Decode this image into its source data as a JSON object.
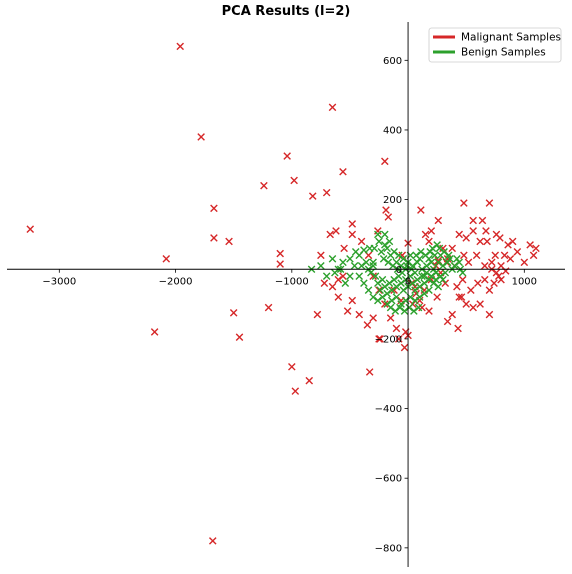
{
  "chart_data": {
    "type": "scatter",
    "title": "PCA Results (l=2)",
    "xlabel": "",
    "ylabel": "",
    "xlim": [
      -3450,
      1350
    ],
    "ylim": [
      -855,
      710
    ],
    "xticks": [
      -3000,
      -2000,
      -1000,
      0,
      1000
    ],
    "yticks": [
      -800,
      -600,
      -400,
      -200,
      0,
      200,
      400,
      600
    ],
    "axes": "centered-spines",
    "grid": false,
    "legend_position": "top-right",
    "legend": [
      {
        "label": "Malignant Samples",
        "color": "#d62728"
      },
      {
        "label": "Benign Samples",
        "color": "#2ca02c"
      }
    ],
    "series": [
      {
        "name": "Malignant Samples",
        "color": "#d62728",
        "marker": "x",
        "points": [
          [
            -3250,
            115
          ],
          [
            -1960,
            640
          ],
          [
            -1780,
            380
          ],
          [
            -1670,
            175
          ],
          [
            -1670,
            90
          ],
          [
            -1540,
            80
          ],
          [
            -2080,
            30
          ],
          [
            -2180,
            -180
          ],
          [
            -1500,
            -125
          ],
          [
            -1450,
            -195
          ],
          [
            -1200,
            -110
          ],
          [
            -1240,
            240
          ],
          [
            -1040,
            325
          ],
          [
            -980,
            255
          ],
          [
            -1100,
            45
          ],
          [
            -1100,
            15
          ],
          [
            -1000,
            -280
          ],
          [
            -970,
            -350
          ],
          [
            -850,
            -320
          ],
          [
            -820,
            210
          ],
          [
            -700,
            220
          ],
          [
            -650,
            465
          ],
          [
            -560,
            280
          ],
          [
            -780,
            -130
          ],
          [
            -720,
            -40
          ],
          [
            -600,
            -30
          ],
          [
            -200,
            310
          ],
          [
            -190,
            170
          ],
          [
            -170,
            150
          ],
          [
            -330,
            -295
          ],
          [
            -1680,
            -780
          ],
          [
            -750,
            40
          ],
          [
            -670,
            100
          ],
          [
            -620,
            110
          ],
          [
            -480,
            130
          ],
          [
            -480,
            100
          ],
          [
            -400,
            80
          ],
          [
            -550,
            60
          ],
          [
            -260,
            110
          ],
          [
            -340,
            40
          ],
          [
            -300,
            -20
          ],
          [
            -250,
            -60
          ],
          [
            -200,
            -100
          ],
          [
            -150,
            -140
          ],
          [
            -100,
            -170
          ],
          [
            -80,
            -200
          ],
          [
            -300,
            -140
          ],
          [
            -350,
            -160
          ],
          [
            -420,
            -130
          ],
          [
            -480,
            -90
          ],
          [
            -520,
            -120
          ],
          [
            -600,
            -80
          ],
          [
            -650,
            -50
          ],
          [
            -560,
            -20
          ],
          [
            -250,
            -200
          ],
          [
            -120,
            -60
          ],
          [
            -60,
            -90
          ],
          [
            -20,
            -180
          ],
          [
            -30,
            -225
          ],
          [
            0,
            75
          ],
          [
            -50,
            40
          ],
          [
            110,
            170
          ],
          [
            150,
            100
          ],
          [
            180,
            80
          ],
          [
            200,
            110
          ],
          [
            260,
            140
          ],
          [
            300,
            60
          ],
          [
            260,
            25
          ],
          [
            340,
            30
          ],
          [
            400,
            10
          ],
          [
            420,
            -50
          ],
          [
            440,
            -80
          ],
          [
            380,
            -130
          ],
          [
            320,
            -40
          ],
          [
            200,
            -30
          ],
          [
            140,
            -60
          ],
          [
            100,
            -90
          ],
          [
            60,
            -50
          ],
          [
            40,
            -100
          ],
          [
            120,
            -110
          ],
          [
            180,
            -120
          ],
          [
            340,
            -150
          ],
          [
            460,
            -80
          ],
          [
            500,
            -100
          ],
          [
            560,
            -110
          ],
          [
            620,
            -100
          ],
          [
            540,
            -60
          ],
          [
            600,
            -40
          ],
          [
            660,
            -30
          ],
          [
            700,
            -60
          ],
          [
            740,
            -40
          ],
          [
            780,
            -20
          ],
          [
            800,
            10
          ],
          [
            830,
            40
          ],
          [
            860,
            70
          ],
          [
            900,
            80
          ],
          [
            940,
            50
          ],
          [
            1050,
            70
          ],
          [
            1080,
            40
          ],
          [
            1100,
            60
          ],
          [
            1000,
            20
          ],
          [
            480,
            190
          ],
          [
            560,
            140
          ],
          [
            640,
            140
          ],
          [
            700,
            190
          ],
          [
            760,
            100
          ],
          [
            790,
            90
          ],
          [
            680,
            80
          ],
          [
            620,
            80
          ],
          [
            560,
            110
          ],
          [
            500,
            90
          ],
          [
            440,
            100
          ],
          [
            380,
            60
          ],
          [
            330,
            20
          ],
          [
            280,
            -10
          ],
          [
            240,
            10
          ],
          [
            660,
            10
          ],
          [
            720,
            20
          ],
          [
            750,
            40
          ],
          [
            700,
            -130
          ],
          [
            760,
            -10
          ],
          [
            840,
            -5
          ],
          [
            430,
            -170
          ],
          [
            -240,
            -200
          ],
          [
            0,
            -190
          ],
          [
            30,
            -40
          ],
          [
            70,
            -70
          ],
          [
            250,
            -80
          ],
          [
            480,
            40
          ],
          [
            590,
            40
          ],
          [
            670,
            110
          ],
          [
            720,
            0
          ],
          [
            800,
            -30
          ],
          [
            880,
            30
          ],
          [
            470,
            -30
          ],
          [
            520,
            20
          ]
        ]
      },
      {
        "name": "Benign Samples",
        "color": "#2ca02c",
        "marker": "x",
        "points": [
          [
            -830,
            0
          ],
          [
            -630,
            -10
          ],
          [
            -560,
            20
          ],
          [
            -500,
            30
          ],
          [
            -450,
            50
          ],
          [
            -380,
            55
          ],
          [
            -330,
            60
          ],
          [
            -290,
            60
          ],
          [
            -250,
            80
          ],
          [
            -200,
            100
          ],
          [
            -180,
            60
          ],
          [
            -150,
            40
          ],
          [
            -120,
            50
          ],
          [
            -100,
            20
          ],
          [
            -80,
            40
          ],
          [
            -60,
            10
          ],
          [
            -40,
            30
          ],
          [
            -20,
            0
          ],
          [
            0,
            20
          ],
          [
            20,
            40
          ],
          [
            40,
            10
          ],
          [
            60,
            -10
          ],
          [
            80,
            20
          ],
          [
            100,
            30
          ],
          [
            120,
            0
          ],
          [
            140,
            -20
          ],
          [
            160,
            10
          ],
          [
            180,
            30
          ],
          [
            200,
            20
          ],
          [
            220,
            0
          ],
          [
            240,
            -10
          ],
          [
            260,
            20
          ],
          [
            280,
            40
          ],
          [
            300,
            10
          ],
          [
            320,
            -10
          ],
          [
            340,
            20
          ],
          [
            360,
            30
          ],
          [
            380,
            0
          ],
          [
            400,
            10
          ],
          [
            420,
            30
          ],
          [
            440,
            20
          ],
          [
            -300,
            10
          ],
          [
            -280,
            -20
          ],
          [
            -260,
            -40
          ],
          [
            -240,
            -60
          ],
          [
            -220,
            -30
          ],
          [
            -200,
            -50
          ],
          [
            -180,
            -70
          ],
          [
            -160,
            -40
          ],
          [
            -140,
            -60
          ],
          [
            -120,
            -30
          ],
          [
            -100,
            -50
          ],
          [
            -80,
            -20
          ],
          [
            -60,
            -40
          ],
          [
            -40,
            -60
          ],
          [
            -20,
            -30
          ],
          [
            0,
            -50
          ],
          [
            20,
            -20
          ],
          [
            40,
            -40
          ],
          [
            60,
            -60
          ],
          [
            80,
            -30
          ],
          [
            100,
            -50
          ],
          [
            120,
            -20
          ],
          [
            140,
            -40
          ],
          [
            160,
            -10
          ],
          [
            180,
            -30
          ],
          [
            200,
            -20
          ],
          [
            220,
            -40
          ],
          [
            240,
            -30
          ],
          [
            260,
            -50
          ],
          [
            280,
            -20
          ],
          [
            300,
            -30
          ],
          [
            -340,
            0
          ],
          [
            -320,
            -10
          ],
          [
            -360,
            20
          ],
          [
            -400,
            10
          ],
          [
            -420,
            -20
          ],
          [
            -380,
            -40
          ],
          [
            -340,
            -60
          ],
          [
            -300,
            -80
          ],
          [
            -260,
            -90
          ],
          [
            -220,
            -80
          ],
          [
            -180,
            -100
          ],
          [
            -140,
            -90
          ],
          [
            -100,
            -80
          ],
          [
            -60,
            -100
          ],
          [
            -20,
            -90
          ],
          [
            20,
            -80
          ],
          [
            60,
            -90
          ],
          [
            100,
            -80
          ],
          [
            140,
            -70
          ],
          [
            180,
            -60
          ],
          [
            -230,
            50
          ],
          [
            -210,
            30
          ],
          [
            -170,
            20
          ],
          [
            -130,
            10
          ],
          [
            -90,
            0
          ],
          [
            -50,
            -10
          ],
          [
            -10,
            10
          ],
          [
            30,
            0
          ],
          [
            70,
            40
          ],
          [
            110,
            50
          ],
          [
            150,
            40
          ],
          [
            190,
            50
          ],
          [
            230,
            40
          ],
          [
            270,
            60
          ],
          [
            310,
            50
          ],
          [
            350,
            40
          ],
          [
            -420,
            40
          ],
          [
            -460,
            10
          ],
          [
            -500,
            -20
          ],
          [
            -540,
            -40
          ],
          [
            -580,
            0
          ],
          [
            -200,
            70
          ],
          [
            -160,
            80
          ],
          [
            -260,
            100
          ],
          [
            -300,
            20
          ],
          [
            250,
            70
          ],
          [
            210,
            60
          ],
          [
            90,
            -110
          ],
          [
            50,
            -120
          ],
          [
            10,
            -110
          ],
          [
            -30,
            -120
          ],
          [
            -70,
            -110
          ],
          [
            -110,
            -120
          ],
          [
            -150,
            -110
          ],
          [
            450,
            0
          ],
          [
            470,
            -10
          ],
          [
            -700,
            -20
          ],
          [
            -650,
            30
          ],
          [
            -750,
            10
          ],
          [
            -600,
            0
          ]
        ]
      }
    ]
  }
}
